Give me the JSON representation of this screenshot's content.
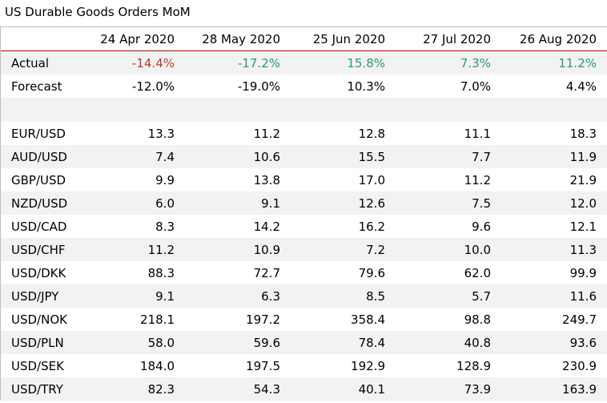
{
  "title": "US Durable Goods Orders MoM",
  "columns": [
    "24 Apr 2020",
    "28 May 2020",
    "25 Jun 2020",
    "27 Jul 2020",
    "26 Aug 2020"
  ],
  "actual": {
    "label": "Actual",
    "values": [
      "-14.4%",
      "-17.2%",
      "15.8%",
      "7.3%",
      "11.2%"
    ],
    "colors": [
      "#c0392b",
      "#2e9a68",
      "#2e9a68",
      "#2e9a68",
      "#2e9a68"
    ]
  },
  "forecast": {
    "label": "Forecast",
    "values": [
      "-12.0%",
      "-19.0%",
      "10.3%",
      "7.0%",
      "4.4%"
    ]
  },
  "pairs": [
    {
      "label": "EUR/USD",
      "values": [
        "13.3",
        "11.2",
        "12.8",
        "11.1",
        "18.3"
      ]
    },
    {
      "label": "AUD/USD",
      "values": [
        "7.4",
        "10.6",
        "15.5",
        "7.7",
        "11.9"
      ]
    },
    {
      "label": "GBP/USD",
      "values": [
        "9.9",
        "13.8",
        "17.0",
        "11.2",
        "21.9"
      ]
    },
    {
      "label": "NZD/USD",
      "values": [
        "6.0",
        "9.1",
        "12.6",
        "7.5",
        "12.0"
      ]
    },
    {
      "label": "USD/CAD",
      "values": [
        "8.3",
        "14.2",
        "16.2",
        "9.6",
        "12.1"
      ]
    },
    {
      "label": "USD/CHF",
      "values": [
        "11.2",
        "10.9",
        "7.2",
        "10.0",
        "11.3"
      ]
    },
    {
      "label": "USD/DKK",
      "values": [
        "88.3",
        "72.7",
        "79.6",
        "62.0",
        "99.9"
      ]
    },
    {
      "label": "USD/JPY",
      "values": [
        "9.1",
        "6.3",
        "8.5",
        "5.7",
        "11.6"
      ]
    },
    {
      "label": "USD/NOK",
      "values": [
        "218.1",
        "197.2",
        "358.4",
        "98.8",
        "249.7"
      ]
    },
    {
      "label": "USD/PLN",
      "values": [
        "58.0",
        "59.6",
        "78.4",
        "40.8",
        "93.6"
      ]
    },
    {
      "label": "USD/SEK",
      "values": [
        "184.0",
        "197.5",
        "192.9",
        "128.9",
        "230.9"
      ]
    },
    {
      "label": "USD/TRY",
      "values": [
        "82.3",
        "54.3",
        "40.1",
        "73.9",
        "163.9"
      ]
    }
  ]
}
